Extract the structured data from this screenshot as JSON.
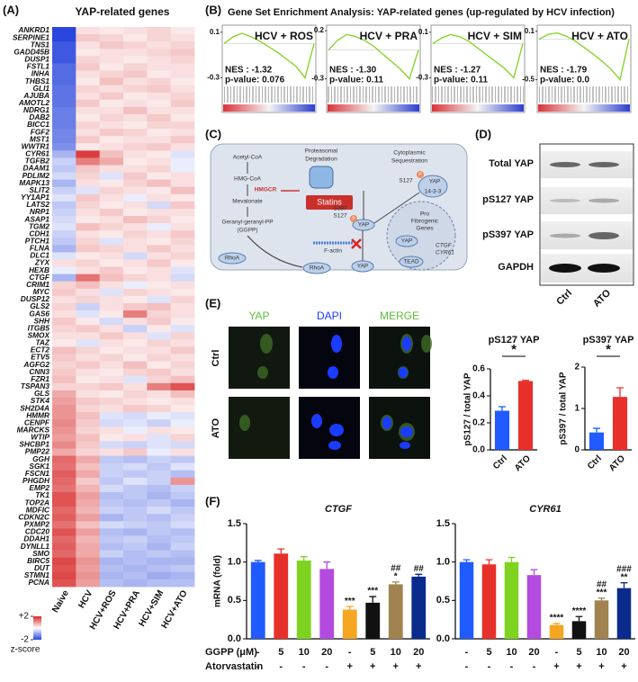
{
  "panel_labels": [
    "(A)",
    "(B)",
    "(C)",
    "(D)",
    "(E)",
    "(F)"
  ],
  "panel_b": {
    "title": "Gene Set Enrichment Analysis: YAP-related genes (up-regulated by HCV infection)"
  },
  "diagram": {
    "labels": [
      "Acetyl-CoA",
      "HMG-CoA",
      "HMGCR",
      "Mevalonate",
      "Geranyl-geranyl-PP",
      "(GGPP)",
      "Statins",
      "RhoA",
      "RhoA",
      "F-actin",
      "Proteasomal",
      "Degradation",
      "Cytoplasmic",
      "Sequestration",
      "S127",
      "YAP",
      "14-3-3",
      "S397",
      "S127",
      "YAP",
      "YAP",
      "YAP",
      "TEAD",
      "Pro",
      "Fibrogenic",
      "Genes",
      "CTGF",
      "CYR61",
      "P"
    ]
  },
  "panel_d": {
    "bands": [
      "Total YAP",
      "pS127 YAP",
      "pS397 YAP",
      "GAPDH"
    ],
    "lanes": [
      "Ctrl",
      "ATO"
    ]
  },
  "panel_e": {
    "channels": [
      "YAP",
      "DAPI",
      "MERGE"
    ],
    "rows": [
      "Ctrl",
      "ATO"
    ]
  },
  "panel_f": {
    "row_labels": [
      "GGPP (μM)",
      "Atorvastatin"
    ],
    "ggpp": [
      "-",
      "5",
      "10",
      "20",
      "-",
      "5",
      "10",
      "20"
    ],
    "atorvastatin": [
      "-",
      "-",
      "-",
      "-",
      "+",
      "+",
      "+",
      "+"
    ]
  },
  "chart_data": [
    {
      "type": "heatmap",
      "title": "YAP-related genes",
      "rows": [
        "ANKRD1",
        "SERPINE1",
        "TNS1",
        "GADD45B",
        "DUSP1",
        "FSTL1",
        "INHA",
        "THBS1",
        "GLI1",
        "AJUBA",
        "AMOTL2",
        "NDRG1",
        "DAB2",
        "BICC1",
        "FGF2",
        "MST1",
        "WWTR1",
        "CYR61",
        "TGFB2",
        "DAAM1",
        "PDLIM2",
        "MAPK13",
        "SLIT2",
        "YY1AP1",
        "LATS2",
        "NRP1",
        "ASAP1",
        "TGM2",
        "CDH1",
        "PTCH1",
        "FLNA",
        "DLC1",
        "ZYX",
        "HEXB",
        "CTGF",
        "CRIM1",
        "MYC",
        "DUSP12",
        "GLS2",
        "GAS6",
        "SHH",
        "ITGB5",
        "SMOX",
        "TAZ",
        "ECT2",
        "ETV5",
        "AGFG2",
        "CNN3",
        "FZR1",
        "TSPAN3",
        "GLS",
        "STK4",
        "SH2D4A",
        "HMMR",
        "CENPF",
        "MARCKS",
        "WTIP",
        "SHCBP1",
        "PMP22",
        "GGH",
        "SGK1",
        "FSCN1",
        "PHGDH",
        "EMP2",
        "TK1",
        "TOP2A",
        "MDFIC",
        "CDKN2C",
        "PXMP2",
        "CDC20",
        "DDAH1",
        "DYNLL1",
        "SMO",
        "BIRC5",
        "DUT",
        "STMN1",
        "PCNA"
      ],
      "columns": [
        "Naive",
        "HCV",
        "HCV+ROS",
        "HCV+PRA",
        "HCV+SIM",
        "HCV+ATO"
      ],
      "values": [
        [
          -2,
          0.3,
          0.2,
          0.3,
          0.4,
          0.2
        ],
        [
          -2,
          0.5,
          0.4,
          0.2,
          0.4,
          0.3
        ],
        [
          -1.8,
          0.3,
          0.5,
          0.4,
          0.3,
          0.4
        ],
        [
          -1.8,
          0.2,
          0.3,
          0.3,
          0.4,
          0.5
        ],
        [
          -1.8,
          0.4,
          0.3,
          0.2,
          0.3,
          0.4
        ],
        [
          -1.6,
          0.5,
          0.2,
          0.4,
          0.3,
          0.3
        ],
        [
          -1.6,
          0.3,
          0.4,
          0.5,
          0.2,
          0.3
        ],
        [
          -1.6,
          0.2,
          0.6,
          0.3,
          0.4,
          0.2
        ],
        [
          -1.5,
          0.4,
          0.3,
          0.4,
          0.5,
          0.3
        ],
        [
          -1.5,
          0.3,
          0.5,
          0.2,
          0.3,
          0.4
        ],
        [
          -1.5,
          0.5,
          0.2,
          0.3,
          0.2,
          0.5
        ],
        [
          -1.4,
          0.3,
          0.3,
          0.6,
          0.3,
          0.3
        ],
        [
          -1.4,
          0.2,
          0.4,
          0.3,
          0.5,
          0.2
        ],
        [
          -1.4,
          0.4,
          0.3,
          0.2,
          0.4,
          0.4
        ],
        [
          -1.3,
          0.3,
          0.5,
          0.4,
          0.2,
          0.3
        ],
        [
          -1.3,
          0.5,
          0.2,
          0.3,
          0.3,
          0.5
        ],
        [
          -1.2,
          0.2,
          0.3,
          0.4,
          0.5,
          0.3
        ],
        [
          -0.8,
          1.8,
          0.6,
          0.3,
          0.2,
          -0.3
        ],
        [
          -0.5,
          1.2,
          0.8,
          0.2,
          0.3,
          -0.2
        ],
        [
          -0.6,
          0.5,
          0.3,
          0.3,
          0.4,
          -0.2
        ],
        [
          -0.4,
          0.4,
          -0.3,
          0.5,
          0.2,
          0.3
        ],
        [
          -0.8,
          0.3,
          0.2,
          0.4,
          0.6,
          0.3
        ],
        [
          -0.5,
          -0.3,
          0.4,
          0.3,
          0.2,
          0.6
        ],
        [
          -0.3,
          0.5,
          0.3,
          -0.2,
          0.3,
          0.2
        ],
        [
          -0.6,
          0.4,
          0.2,
          0.3,
          -0.4,
          0.5
        ],
        [
          -0.5,
          0.3,
          0.5,
          0.2,
          0.3,
          0.3
        ],
        [
          -0.4,
          0.2,
          0.3,
          0.6,
          0.4,
          0.2
        ],
        [
          -0.3,
          0.6,
          0.4,
          0.3,
          -0.2,
          0.3
        ],
        [
          -0.5,
          0.3,
          0.2,
          0.4,
          0.3,
          0.5
        ],
        [
          -0.6,
          0.4,
          -0.3,
          0.3,
          0.2,
          0.4
        ],
        [
          -0.8,
          0.5,
          0.4,
          0.3,
          0.5,
          0.3
        ],
        [
          -0.3,
          0.2,
          0.3,
          -0.4,
          0.3,
          0.4
        ],
        [
          0.3,
          0.4,
          0.2,
          0.3,
          0.5,
          0.2
        ],
        [
          -0.2,
          0.3,
          0.5,
          0.2,
          0.3,
          -0.3
        ],
        [
          -0.8,
          1.3,
          0.6,
          0.4,
          0.3,
          -0.4
        ],
        [
          0.4,
          0.6,
          0.3,
          -0.2,
          0.2,
          0.3
        ],
        [
          0.5,
          0.3,
          -0.3,
          0.4,
          0.3,
          0.2
        ],
        [
          0.3,
          0.4,
          0.3,
          0.2,
          -0.3,
          0.4
        ],
        [
          0.4,
          -0.5,
          0.3,
          0.5,
          0.6,
          0.3
        ],
        [
          0.3,
          -0.3,
          0.2,
          1.2,
          0.4,
          0.3
        ],
        [
          0.5,
          0.2,
          -0.4,
          0.3,
          0.5,
          0.2
        ],
        [
          0.4,
          0.5,
          0.3,
          -0.5,
          0.2,
          -0.3
        ],
        [
          0.3,
          0.3,
          0.5,
          0.3,
          -0.3,
          0.4
        ],
        [
          0.2,
          -0.3,
          0.3,
          0.2,
          0.4,
          0.3
        ],
        [
          0.6,
          0.4,
          0.2,
          0.3,
          0.3,
          0.5
        ],
        [
          0.5,
          0.3,
          0.4,
          0.2,
          0.4,
          0.3
        ],
        [
          0.4,
          0.5,
          0.3,
          0.6,
          0.2,
          0.4
        ],
        [
          0.5,
          0.3,
          0.2,
          0.4,
          0.5,
          0.3
        ],
        [
          0.6,
          0.2,
          0.3,
          -0.3,
          0.4,
          0.6
        ],
        [
          0.4,
          0.4,
          0.5,
          0.3,
          1.2,
          1.6
        ],
        [
          0.8,
          0.3,
          0.2,
          0.4,
          0.3,
          0.6
        ],
        [
          0.9,
          0.5,
          0.4,
          0.3,
          0.2,
          0.3
        ],
        [
          1.0,
          0.4,
          0.3,
          0.5,
          0.4,
          0.2
        ],
        [
          1.0,
          0.6,
          -0.3,
          -0.4,
          -0.2,
          -0.3
        ],
        [
          1.1,
          0.5,
          -0.4,
          -0.3,
          -0.5,
          -0.2
        ],
        [
          1.0,
          0.4,
          0.3,
          -0.2,
          0.3,
          0.2
        ],
        [
          0.9,
          0.6,
          0.2,
          0.3,
          -0.3,
          0.4
        ],
        [
          1.1,
          0.5,
          -0.4,
          -0.5,
          -0.3,
          -0.4
        ],
        [
          0.8,
          0.4,
          0.3,
          0.5,
          -0.2,
          0.3
        ],
        [
          1.4,
          0.8,
          -0.6,
          -0.7,
          -0.5,
          -0.6
        ],
        [
          1.3,
          0.6,
          -0.5,
          -0.4,
          -0.6,
          -0.3
        ],
        [
          1.5,
          0.8,
          -0.5,
          -0.6,
          -0.5,
          -0.7
        ],
        [
          1.4,
          0.5,
          -0.6,
          -0.3,
          -0.5,
          1.0
        ],
        [
          1.3,
          0.7,
          -0.4,
          -0.6,
          -0.7,
          -0.5
        ],
        [
          1.6,
          0.9,
          -0.7,
          -0.6,
          -0.8,
          -0.6
        ],
        [
          1.6,
          0.8,
          -0.6,
          -0.7,
          -0.6,
          -0.8
        ],
        [
          1.4,
          0.7,
          -0.5,
          -0.6,
          -0.4,
          -0.6
        ],
        [
          1.5,
          0.9,
          -0.8,
          -0.6,
          -0.7,
          -0.5
        ],
        [
          1.3,
          0.6,
          -0.4,
          -0.5,
          -0.6,
          -0.4
        ],
        [
          1.6,
          0.9,
          -0.7,
          -0.8,
          -0.6,
          -0.7
        ],
        [
          1.4,
          0.7,
          -0.6,
          -0.5,
          -0.7,
          -0.6
        ],
        [
          1.5,
          0.8,
          -0.7,
          -0.6,
          -0.8,
          -0.5
        ],
        [
          1.4,
          0.8,
          -0.5,
          -0.7,
          -0.6,
          -0.7
        ],
        [
          1.7,
          1.0,
          -0.8,
          -0.7,
          -0.8,
          -0.8
        ],
        [
          1.6,
          0.9,
          -0.7,
          -0.8,
          -0.7,
          -0.6
        ],
        [
          1.7,
          1.0,
          -0.8,
          -0.7,
          -0.9,
          -0.8
        ],
        [
          1.6,
          0.9,
          -0.7,
          -0.8,
          -0.7,
          -0.7
        ]
      ],
      "clim": [
        -2,
        2
      ],
      "cticks": [
        {
          "value": 2,
          "label": "+2"
        },
        -2
      ],
      "colorbar_label": "z-score",
      "colormap": [
        "#2846dc",
        "#ffffff",
        "#d72828"
      ]
    },
    {
      "type": "gsea",
      "title": "HCV + ROS",
      "nes_text": "NES :  -1.32",
      "pvalue_text": "p-value: 0.076",
      "ylim": [
        -0.36,
        0.13
      ],
      "yticks": [
        0.1,
        -0.3
      ],
      "values": [
        0,
        0.06,
        0.09,
        0.06,
        0.02,
        -0.03,
        -0.08,
        -0.14,
        -0.2,
        -0.3,
        0
      ],
      "color": "#7ed321"
    },
    {
      "type": "gsea",
      "title": "HCV + PRA",
      "nes_text": "NES :  -1.30",
      "pvalue_text": "p-value: 0.11",
      "ylim": [
        -0.36,
        0.22
      ],
      "yticks": [
        0.2,
        -0.3
      ],
      "values": [
        0,
        0.1,
        0.16,
        0.14,
        0.1,
        0.04,
        -0.04,
        -0.12,
        -0.2,
        -0.3,
        0
      ],
      "color": "#7ed321"
    },
    {
      "type": "gsea",
      "title": "HCV + SIM",
      "nes_text": "NES :  -1.27",
      "pvalue_text": "p-value: 0.11",
      "ylim": [
        -0.36,
        0.13
      ],
      "yticks": [
        0.1,
        -0.3
      ],
      "values": [
        0,
        0.05,
        0.08,
        0.06,
        0.02,
        -0.04,
        -0.1,
        -0.16,
        -0.22,
        -0.3,
        0
      ],
      "color": "#7ed321"
    },
    {
      "type": "gsea",
      "title": "HCV + ATO",
      "nes_text": "NES :  -1.79",
      "pvalue_text": "p-value: 0.0",
      "ylim": [
        -0.56,
        0.13
      ],
      "yticks": [
        0.1,
        -0.5
      ],
      "values": [
        0,
        0.06,
        0.08,
        0.04,
        -0.02,
        -0.1,
        -0.18,
        -0.27,
        -0.37,
        -0.5,
        0
      ],
      "color": "#7ed321"
    },
    {
      "type": "bar",
      "title": "pS127 YAP",
      "ylabel": "pS127 / total YAP",
      "categories": [
        "Ctrl",
        "ATO"
      ],
      "values": [
        0.29,
        0.51
      ],
      "errors": [
        0.03,
        0.005
      ],
      "colors": [
        "#1f5bff",
        "#e8302a"
      ],
      "ylim": [
        0,
        0.6
      ],
      "yticks": [
        {
          "value": 0,
          "label": "0.0"
        },
        0.2,
        0.4,
        0.6
      ],
      "significance": "*"
    },
    {
      "type": "bar",
      "title": "pS397 YAP",
      "ylabel": "pS397 / total YAP",
      "categories": [
        "Ctrl",
        "ATO"
      ],
      "values": [
        0.42,
        1.28
      ],
      "errors": [
        0.1,
        0.22
      ],
      "colors": [
        "#1f5bff",
        "#e8302a"
      ],
      "ylim": [
        0,
        2
      ],
      "yticks": [
        0,
        1,
        2
      ],
      "significance": "*"
    },
    {
      "type": "bar",
      "title": "CTGF",
      "ylabel": "mRNA (fold)",
      "values": [
        1.0,
        1.11,
        1.02,
        0.91,
        0.38,
        0.47,
        0.71,
        0.81
      ],
      "errors": [
        0.02,
        0.06,
        0.05,
        0.09,
        0.04,
        0.08,
        0.03,
        0.03
      ],
      "annotations": [
        null,
        null,
        null,
        null,
        [
          "***"
        ],
        [
          "***"
        ],
        [
          "##",
          "*"
        ],
        [
          "##"
        ]
      ],
      "colors": [
        "#1f5bff",
        "#e8302a",
        "#7ed321",
        "#b44be1",
        "#f5a623",
        "#111111",
        "#a08350",
        "#0a2a8c"
      ],
      "ylim": [
        0,
        1.5
      ],
      "yticks": [
        {
          "value": 0,
          "label": "0.0"
        },
        0.5,
        {
          "value": 1,
          "label": "1.0"
        },
        1.5
      ]
    },
    {
      "type": "bar",
      "title": "CYR61",
      "values": [
        1.0,
        0.97,
        1.0,
        0.83,
        0.18,
        0.23,
        0.5,
        0.66
      ],
      "errors": [
        0.03,
        0.06,
        0.06,
        0.07,
        0.02,
        0.06,
        0.03,
        0.07
      ],
      "annotations": [
        null,
        null,
        null,
        null,
        [
          "****"
        ],
        [
          "****"
        ],
        [
          "##",
          "***"
        ],
        [
          "###",
          "**"
        ]
      ],
      "colors": [
        "#1f5bff",
        "#e8302a",
        "#7ed321",
        "#b44be1",
        "#f5a623",
        "#111111",
        "#a08350",
        "#0a2a8c"
      ],
      "ylim": [
        0,
        1.5
      ],
      "yticks": [
        {
          "value": 0,
          "label": "0.0"
        },
        0.5,
        {
          "value": 1,
          "label": "1.0"
        },
        1.5
      ]
    }
  ]
}
